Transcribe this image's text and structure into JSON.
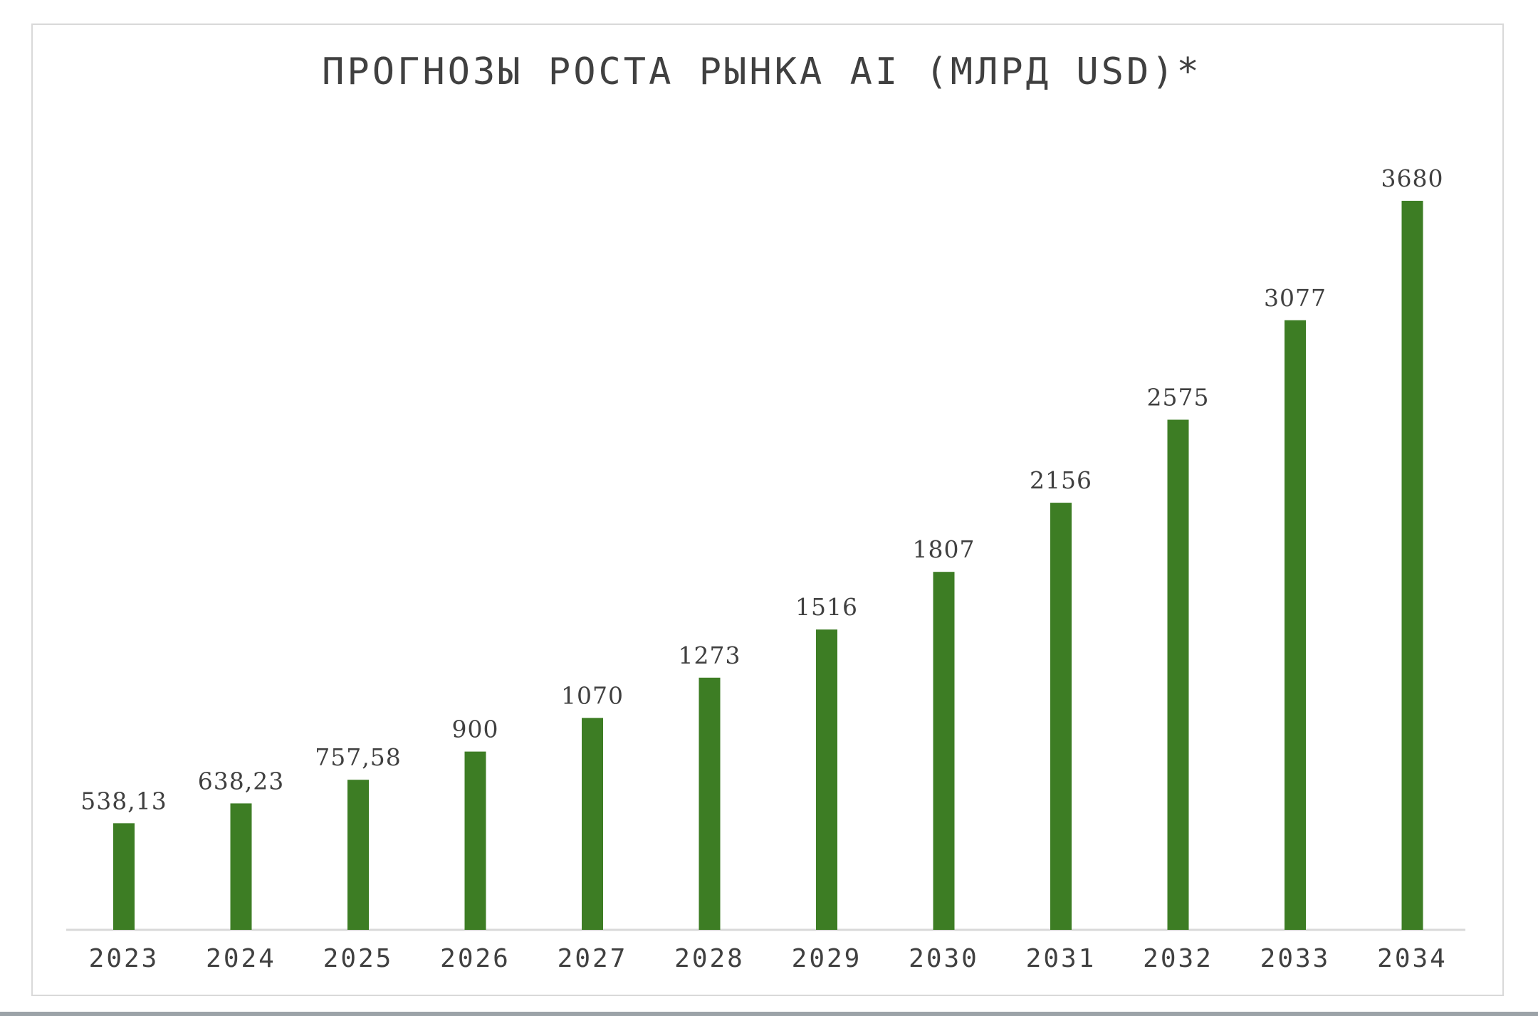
{
  "chart_data": {
    "type": "bar",
    "title": "ПРОГНОЗЫ РОСТА РЫНКА AI (МЛРД USD)*",
    "xlabel": "",
    "ylabel": "",
    "categories": [
      "2023",
      "2024",
      "2025",
      "2026",
      "2027",
      "2028",
      "2029",
      "2030",
      "2031",
      "2032",
      "2033",
      "2034"
    ],
    "values": [
      538.13,
      638.23,
      757.58,
      900,
      1070,
      1273,
      1516,
      1807,
      2156,
      2575,
      3077,
      3680
    ],
    "data_labels": [
      "538,13",
      "638,23",
      "757,58",
      "900",
      "1070",
      "1273",
      "1516",
      "1807",
      "2156",
      "2575",
      "3077",
      "3680"
    ],
    "ylim": [
      0,
      3680
    ],
    "grid": false,
    "legend": "none",
    "bar_color": "#3d7d24",
    "axis_color": "#d9d9d9",
    "text_color": "#404040"
  }
}
